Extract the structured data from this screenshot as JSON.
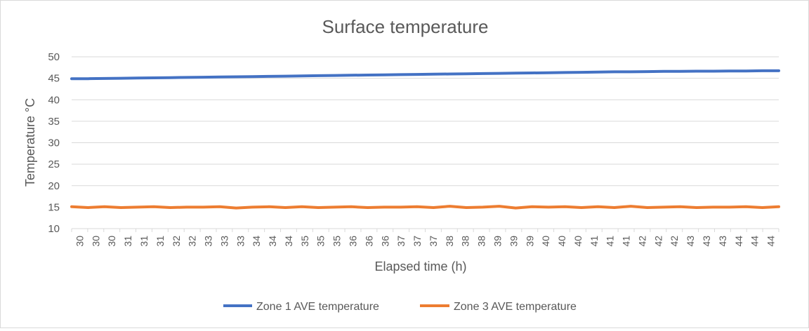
{
  "chart_data": {
    "type": "line",
    "title": "Surface temperature",
    "xlabel": "Elapsed time (h)",
    "ylabel": "Temperature °C",
    "ylim": [
      10,
      50
    ],
    "yticks": [
      10,
      15,
      20,
      25,
      30,
      35,
      40,
      45,
      50
    ],
    "x_tick_labels": [
      "30",
      "30",
      "30",
      "31",
      "31",
      "31",
      "32",
      "32",
      "33",
      "33",
      "33",
      "34",
      "34",
      "34",
      "35",
      "35",
      "35",
      "36",
      "36",
      "36",
      "37",
      "37",
      "37",
      "38",
      "38",
      "38",
      "39",
      "39",
      "39",
      "40",
      "40",
      "40",
      "41",
      "41",
      "41",
      "42",
      "42",
      "42",
      "43",
      "43",
      "43",
      "44",
      "44",
      "44"
    ],
    "grid": true,
    "legend_position": "bottom",
    "series": [
      {
        "name": "Zone 1 AVE temperature",
        "color": "#4472c4",
        "values": [
          44.9,
          44.9,
          44.95,
          45.0,
          45.05,
          45.1,
          45.15,
          45.2,
          45.25,
          45.3,
          45.35,
          45.4,
          45.45,
          45.5,
          45.55,
          45.6,
          45.65,
          45.7,
          45.75,
          45.8,
          45.85,
          45.9,
          45.95,
          46.0,
          46.05,
          46.1,
          46.15,
          46.2,
          46.25,
          46.3,
          46.35,
          46.4,
          46.45,
          46.5,
          46.5,
          46.55,
          46.6,
          46.6,
          46.65,
          46.65,
          46.7,
          46.7,
          46.75,
          46.75
        ]
      },
      {
        "name": "Zone 3 AVE temperature",
        "color": "#ed7d31",
        "values": [
          15.1,
          14.9,
          15.1,
          14.9,
          15.0,
          15.1,
          14.9,
          15.0,
          15.0,
          15.1,
          14.8,
          15.0,
          15.1,
          14.9,
          15.1,
          14.9,
          15.0,
          15.1,
          14.9,
          15.0,
          15.0,
          15.1,
          14.9,
          15.2,
          14.9,
          15.0,
          15.2,
          14.8,
          15.1,
          15.0,
          15.1,
          14.9,
          15.1,
          14.9,
          15.2,
          14.9,
          15.0,
          15.1,
          14.9,
          15.0,
          15.0,
          15.1,
          14.9,
          15.1
        ]
      }
    ]
  }
}
